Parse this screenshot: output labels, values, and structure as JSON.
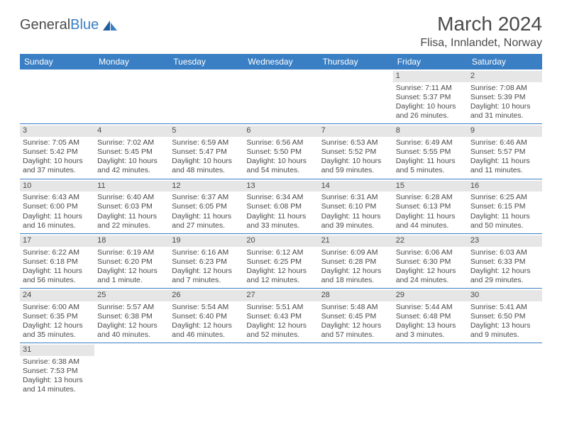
{
  "logo": {
    "word1": "General",
    "word2": "Blue"
  },
  "title": {
    "month": "March 2024",
    "location": "Flisa, Innlandet, Norway"
  },
  "colors": {
    "header_bg": "#3a7fc4",
    "header_text": "#ffffff",
    "daynum_bg": "#e6e6e6",
    "text": "#4a4a4a",
    "rule": "#3a7fc4"
  },
  "weekdays": [
    "Sunday",
    "Monday",
    "Tuesday",
    "Wednesday",
    "Thursday",
    "Friday",
    "Saturday"
  ],
  "weeks": [
    [
      {
        "n": "",
        "sr": "",
        "ss": "",
        "dl1": "",
        "dl2": ""
      },
      {
        "n": "",
        "sr": "",
        "ss": "",
        "dl1": "",
        "dl2": ""
      },
      {
        "n": "",
        "sr": "",
        "ss": "",
        "dl1": "",
        "dl2": ""
      },
      {
        "n": "",
        "sr": "",
        "ss": "",
        "dl1": "",
        "dl2": ""
      },
      {
        "n": "",
        "sr": "",
        "ss": "",
        "dl1": "",
        "dl2": ""
      },
      {
        "n": "1",
        "sr": "Sunrise: 7:11 AM",
        "ss": "Sunset: 5:37 PM",
        "dl1": "Daylight: 10 hours",
        "dl2": "and 26 minutes."
      },
      {
        "n": "2",
        "sr": "Sunrise: 7:08 AM",
        "ss": "Sunset: 5:39 PM",
        "dl1": "Daylight: 10 hours",
        "dl2": "and 31 minutes."
      }
    ],
    [
      {
        "n": "3",
        "sr": "Sunrise: 7:05 AM",
        "ss": "Sunset: 5:42 PM",
        "dl1": "Daylight: 10 hours",
        "dl2": "and 37 minutes."
      },
      {
        "n": "4",
        "sr": "Sunrise: 7:02 AM",
        "ss": "Sunset: 5:45 PM",
        "dl1": "Daylight: 10 hours",
        "dl2": "and 42 minutes."
      },
      {
        "n": "5",
        "sr": "Sunrise: 6:59 AM",
        "ss": "Sunset: 5:47 PM",
        "dl1": "Daylight: 10 hours",
        "dl2": "and 48 minutes."
      },
      {
        "n": "6",
        "sr": "Sunrise: 6:56 AM",
        "ss": "Sunset: 5:50 PM",
        "dl1": "Daylight: 10 hours",
        "dl2": "and 54 minutes."
      },
      {
        "n": "7",
        "sr": "Sunrise: 6:53 AM",
        "ss": "Sunset: 5:52 PM",
        "dl1": "Daylight: 10 hours",
        "dl2": "and 59 minutes."
      },
      {
        "n": "8",
        "sr": "Sunrise: 6:49 AM",
        "ss": "Sunset: 5:55 PM",
        "dl1": "Daylight: 11 hours",
        "dl2": "and 5 minutes."
      },
      {
        "n": "9",
        "sr": "Sunrise: 6:46 AM",
        "ss": "Sunset: 5:57 PM",
        "dl1": "Daylight: 11 hours",
        "dl2": "and 11 minutes."
      }
    ],
    [
      {
        "n": "10",
        "sr": "Sunrise: 6:43 AM",
        "ss": "Sunset: 6:00 PM",
        "dl1": "Daylight: 11 hours",
        "dl2": "and 16 minutes."
      },
      {
        "n": "11",
        "sr": "Sunrise: 6:40 AM",
        "ss": "Sunset: 6:03 PM",
        "dl1": "Daylight: 11 hours",
        "dl2": "and 22 minutes."
      },
      {
        "n": "12",
        "sr": "Sunrise: 6:37 AM",
        "ss": "Sunset: 6:05 PM",
        "dl1": "Daylight: 11 hours",
        "dl2": "and 27 minutes."
      },
      {
        "n": "13",
        "sr": "Sunrise: 6:34 AM",
        "ss": "Sunset: 6:08 PM",
        "dl1": "Daylight: 11 hours",
        "dl2": "and 33 minutes."
      },
      {
        "n": "14",
        "sr": "Sunrise: 6:31 AM",
        "ss": "Sunset: 6:10 PM",
        "dl1": "Daylight: 11 hours",
        "dl2": "and 39 minutes."
      },
      {
        "n": "15",
        "sr": "Sunrise: 6:28 AM",
        "ss": "Sunset: 6:13 PM",
        "dl1": "Daylight: 11 hours",
        "dl2": "and 44 minutes."
      },
      {
        "n": "16",
        "sr": "Sunrise: 6:25 AM",
        "ss": "Sunset: 6:15 PM",
        "dl1": "Daylight: 11 hours",
        "dl2": "and 50 minutes."
      }
    ],
    [
      {
        "n": "17",
        "sr": "Sunrise: 6:22 AM",
        "ss": "Sunset: 6:18 PM",
        "dl1": "Daylight: 11 hours",
        "dl2": "and 56 minutes."
      },
      {
        "n": "18",
        "sr": "Sunrise: 6:19 AM",
        "ss": "Sunset: 6:20 PM",
        "dl1": "Daylight: 12 hours",
        "dl2": "and 1 minute."
      },
      {
        "n": "19",
        "sr": "Sunrise: 6:16 AM",
        "ss": "Sunset: 6:23 PM",
        "dl1": "Daylight: 12 hours",
        "dl2": "and 7 minutes."
      },
      {
        "n": "20",
        "sr": "Sunrise: 6:12 AM",
        "ss": "Sunset: 6:25 PM",
        "dl1": "Daylight: 12 hours",
        "dl2": "and 12 minutes."
      },
      {
        "n": "21",
        "sr": "Sunrise: 6:09 AM",
        "ss": "Sunset: 6:28 PM",
        "dl1": "Daylight: 12 hours",
        "dl2": "and 18 minutes."
      },
      {
        "n": "22",
        "sr": "Sunrise: 6:06 AM",
        "ss": "Sunset: 6:30 PM",
        "dl1": "Daylight: 12 hours",
        "dl2": "and 24 minutes."
      },
      {
        "n": "23",
        "sr": "Sunrise: 6:03 AM",
        "ss": "Sunset: 6:33 PM",
        "dl1": "Daylight: 12 hours",
        "dl2": "and 29 minutes."
      }
    ],
    [
      {
        "n": "24",
        "sr": "Sunrise: 6:00 AM",
        "ss": "Sunset: 6:35 PM",
        "dl1": "Daylight: 12 hours",
        "dl2": "and 35 minutes."
      },
      {
        "n": "25",
        "sr": "Sunrise: 5:57 AM",
        "ss": "Sunset: 6:38 PM",
        "dl1": "Daylight: 12 hours",
        "dl2": "and 40 minutes."
      },
      {
        "n": "26",
        "sr": "Sunrise: 5:54 AM",
        "ss": "Sunset: 6:40 PM",
        "dl1": "Daylight: 12 hours",
        "dl2": "and 46 minutes."
      },
      {
        "n": "27",
        "sr": "Sunrise: 5:51 AM",
        "ss": "Sunset: 6:43 PM",
        "dl1": "Daylight: 12 hours",
        "dl2": "and 52 minutes."
      },
      {
        "n": "28",
        "sr": "Sunrise: 5:48 AM",
        "ss": "Sunset: 6:45 PM",
        "dl1": "Daylight: 12 hours",
        "dl2": "and 57 minutes."
      },
      {
        "n": "29",
        "sr": "Sunrise: 5:44 AM",
        "ss": "Sunset: 6:48 PM",
        "dl1": "Daylight: 13 hours",
        "dl2": "and 3 minutes."
      },
      {
        "n": "30",
        "sr": "Sunrise: 5:41 AM",
        "ss": "Sunset: 6:50 PM",
        "dl1": "Daylight: 13 hours",
        "dl2": "and 9 minutes."
      }
    ],
    [
      {
        "n": "31",
        "sr": "Sunrise: 6:38 AM",
        "ss": "Sunset: 7:53 PM",
        "dl1": "Daylight: 13 hours",
        "dl2": "and 14 minutes."
      },
      {
        "n": "",
        "sr": "",
        "ss": "",
        "dl1": "",
        "dl2": ""
      },
      {
        "n": "",
        "sr": "",
        "ss": "",
        "dl1": "",
        "dl2": ""
      },
      {
        "n": "",
        "sr": "",
        "ss": "",
        "dl1": "",
        "dl2": ""
      },
      {
        "n": "",
        "sr": "",
        "ss": "",
        "dl1": "",
        "dl2": ""
      },
      {
        "n": "",
        "sr": "",
        "ss": "",
        "dl1": "",
        "dl2": ""
      },
      {
        "n": "",
        "sr": "",
        "ss": "",
        "dl1": "",
        "dl2": ""
      }
    ]
  ]
}
